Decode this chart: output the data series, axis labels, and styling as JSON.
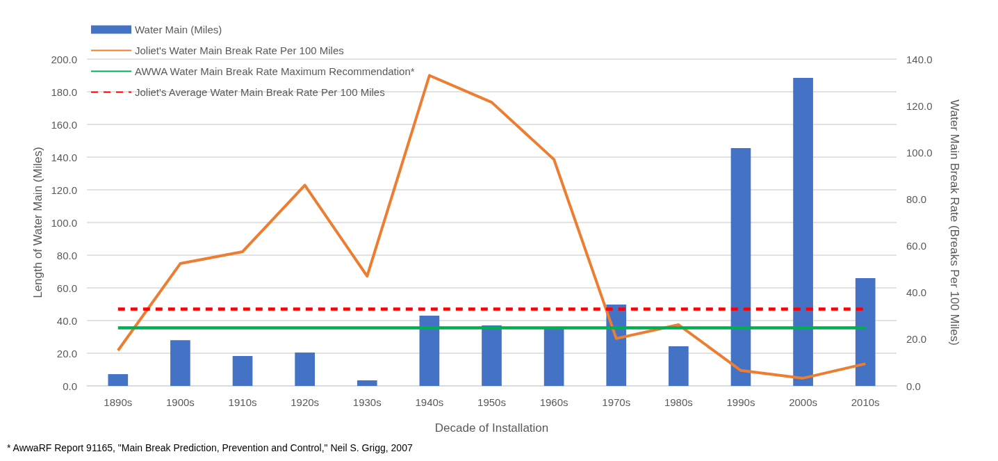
{
  "chart_data": {
    "type": "bar",
    "xlabel": "Decade of Installation",
    "ylabel": "Length of Water Main (Miles)",
    "y2label": "Water Main Break Rate (Breaks Per 100 Miles)",
    "categories": [
      "1890s",
      "1900s",
      "1910s",
      "1920s",
      "1930s",
      "1940s",
      "1950s",
      "1960s",
      "1970s",
      "1980s",
      "1990s",
      "2000s",
      "2010s"
    ],
    "series": [
      {
        "name": "Water Main (Miles)",
        "color": "#4472c4",
        "values": [
          7.2,
          28,
          18.3,
          20.4,
          3.4,
          43,
          37,
          36,
          49.8,
          24.3,
          145.5,
          188.5,
          66
        ]
      },
      {
        "name": "Joliet's Water Main Break Rate Per 100 Miles",
        "type": "line",
        "axis": "y2",
        "color": "#ed7d31",
        "values": [
          15.2,
          52.4,
          57.5,
          86,
          47,
          133,
          121.5,
          97,
          20.3,
          26.2,
          6.6,
          3.3,
          9.5
        ]
      }
    ],
    "ref_lines": [
      {
        "axis": "y2",
        "value": 25,
        "label": "AWWA Water Main Break Rate Maximum Recommendation*",
        "color": "#00b050",
        "line_style": "solid"
      },
      {
        "axis": "y2",
        "value": 33,
        "label": "Joliet's Average Water Main Break Rate Per 100 Miles",
        "color": "#ff0000",
        "line_style": "dashed"
      }
    ],
    "ylim": [
      0,
      200
    ],
    "yticks": [
      {
        "value": 0,
        "label": "0.0"
      },
      {
        "value": 20,
        "label": "20.0"
      },
      {
        "value": 40,
        "label": "40.0"
      },
      {
        "value": 60,
        "label": "60.0"
      },
      {
        "value": 80,
        "label": "80.0"
      },
      {
        "value": 100,
        "label": "100.0"
      },
      {
        "value": 120,
        "label": "120.0"
      },
      {
        "value": 140,
        "label": "140.0"
      },
      {
        "value": 160,
        "label": "160.0"
      },
      {
        "value": 180,
        "label": "180.0"
      },
      {
        "value": 200,
        "label": "200.0"
      }
    ],
    "y2lim": [
      0,
      140
    ],
    "y2ticks": [
      {
        "value": 0,
        "label": "0.0"
      },
      {
        "value": 20,
        "label": "20.0"
      },
      {
        "value": 40,
        "label": "40.0"
      },
      {
        "value": 60,
        "label": "60.0"
      },
      {
        "value": 80,
        "label": "80.0"
      },
      {
        "value": 100,
        "label": "100.0"
      },
      {
        "value": 120,
        "label": "120.0"
      },
      {
        "value": 140,
        "label": "140.0"
      }
    ],
    "grid": "y",
    "legend": "top left",
    "marker": "none",
    "annotations": [
      "* AwwaRF Report 91165, \"Main Break Prediction, Prevention and Control,\" Neil S. Grigg, 2007"
    ]
  }
}
